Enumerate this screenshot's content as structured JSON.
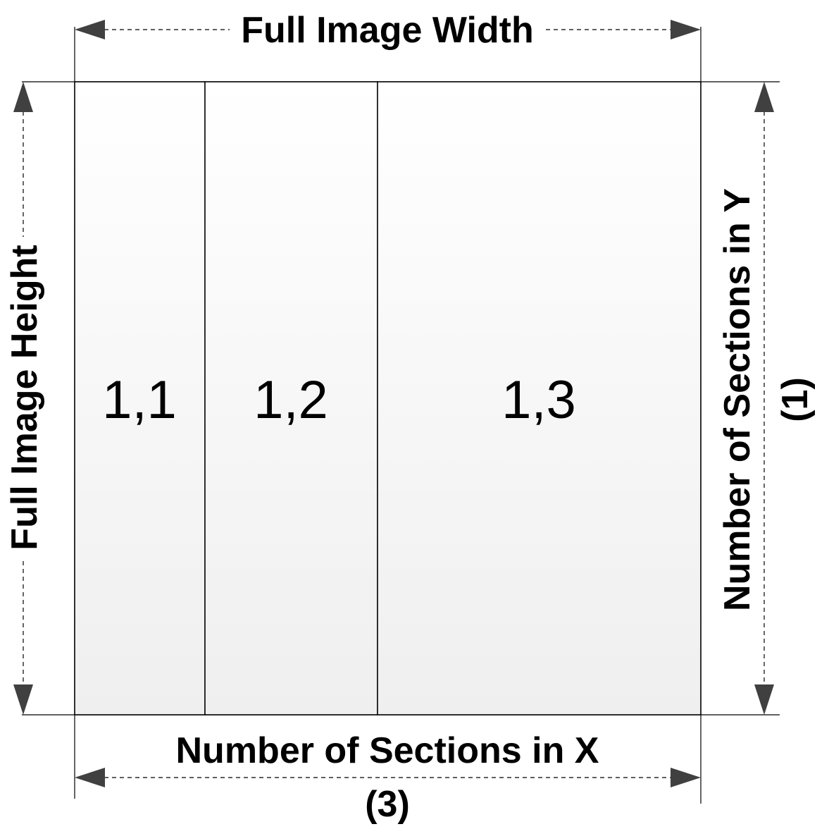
{
  "dimensions": {
    "width_label": "Full Image Width",
    "height_label": "Full Image Height",
    "sections_x_label": "Number of Sections in X",
    "sections_x_count": "(3)",
    "sections_y_label": "Number of Sections in Y",
    "sections_y_count": "(1)"
  },
  "sections": [
    {
      "label": "1,1"
    },
    {
      "label": "1,2"
    },
    {
      "label": "1,3"
    }
  ],
  "colors": {
    "line": "#000000",
    "arrowhead": "#404040",
    "fill_top": "#ffffff",
    "fill_bottom": "#efefef"
  }
}
